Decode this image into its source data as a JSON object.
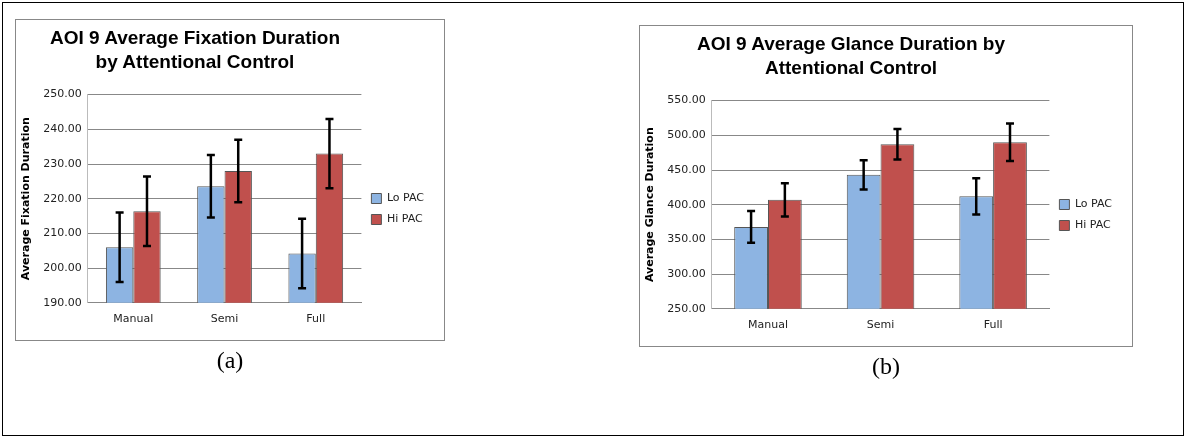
{
  "chart_data": [
    {
      "type": "bar",
      "title": "AOI 9 Average Fixation Duration by Attentional Control",
      "ylabel": "Average Fixation Duration",
      "categories": [
        "Manual",
        "Semi",
        "Full"
      ],
      "series": [
        {
          "name": "Lo PAC",
          "color": "#8db4e2",
          "values": [
            206.0,
            223.6,
            204.2
          ],
          "errors": [
            10,
            9,
            10
          ]
        },
        {
          "name": "Hi PAC",
          "color": "#c0504d",
          "values": [
            216.4,
            228.0,
            233.0
          ],
          "errors": [
            10,
            9,
            10
          ]
        }
      ],
      "ylim": [
        190,
        250
      ],
      "yticks": [
        {
          "value": 190,
          "label": "190.00"
        },
        {
          "value": 200,
          "label": "200.00"
        },
        {
          "value": 210,
          "label": "210.00"
        },
        {
          "value": 220,
          "label": "220.00"
        },
        {
          "value": 230,
          "label": "230.00"
        },
        {
          "value": 240,
          "label": "240.00"
        },
        {
          "value": 250,
          "label": "250.00"
        }
      ],
      "grid": "y",
      "legend": "right",
      "annotations": [
        "(a)"
      ]
    },
    {
      "type": "bar",
      "title": "AOI 9 Average Glance Duration by Attentional Control",
      "ylabel": "Average Glance Duration",
      "categories": [
        "Manual",
        "Semi",
        "Full"
      ],
      "series": [
        {
          "name": "Lo PAC",
          "color": "#8db4e2",
          "values": [
            368,
            443,
            412
          ],
          "errors": [
            23,
            21,
            26
          ]
        },
        {
          "name": "Hi PAC",
          "color": "#c0504d",
          "values": [
            407,
            487,
            490
          ],
          "errors": [
            24,
            22,
            27
          ]
        }
      ],
      "ylim": [
        250,
        550
      ],
      "yticks": [
        {
          "value": 250,
          "label": "250.00"
        },
        {
          "value": 300,
          "label": "300.00"
        },
        {
          "value": 350,
          "label": "350.00"
        },
        {
          "value": 400,
          "label": "400.00"
        },
        {
          "value": 450,
          "label": "450.00"
        },
        {
          "value": 500,
          "label": "500.00"
        },
        {
          "value": 550,
          "label": "550.00"
        }
      ],
      "grid": "y",
      "legend": "right",
      "annotations": [
        "(b)"
      ]
    }
  ]
}
